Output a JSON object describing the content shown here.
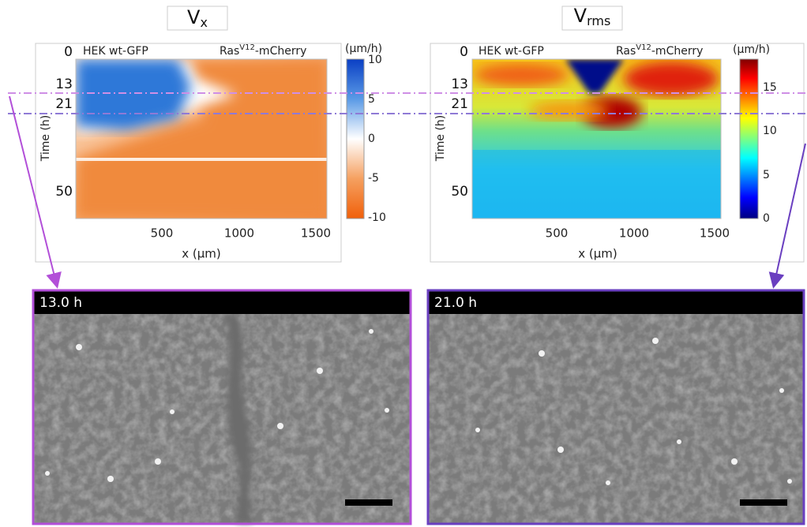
{
  "panels": [
    {
      "title": {
        "main": "V",
        "sub": "x"
      },
      "left_label": "HEK wt-GFP",
      "right_label": {
        "main": "Ras",
        "sup": "V12",
        "tail": "-mCherry"
      },
      "y_label": "Time (h)",
      "yticks": [
        "0",
        "13",
        "21",
        "50"
      ],
      "x_label": "x (µm)",
      "xticks": [
        "500",
        "1000",
        "1500"
      ],
      "colorbar": {
        "unit": "(µm/h)",
        "ticks": [
          "10",
          "5",
          "0",
          "-5",
          "-10"
        ]
      }
    },
    {
      "title": {
        "main": "V",
        "sub": "rms"
      },
      "left_label": "HEK wt-GFP",
      "right_label": {
        "main": "Ras",
        "sup": "V12",
        "tail": "-mCherry"
      },
      "y_label": "Time (h)",
      "yticks": [
        "0",
        "13",
        "21",
        "50"
      ],
      "x_label": "x (µm)",
      "xticks": [
        "500",
        "1000",
        "1500"
      ],
      "colorbar": {
        "unit": "(µm/h)",
        "ticks": [
          "15",
          "10",
          "5",
          "0"
        ]
      }
    }
  ],
  "images": [
    {
      "time": "13.0 h"
    },
    {
      "time": "21.0 h"
    }
  ]
}
